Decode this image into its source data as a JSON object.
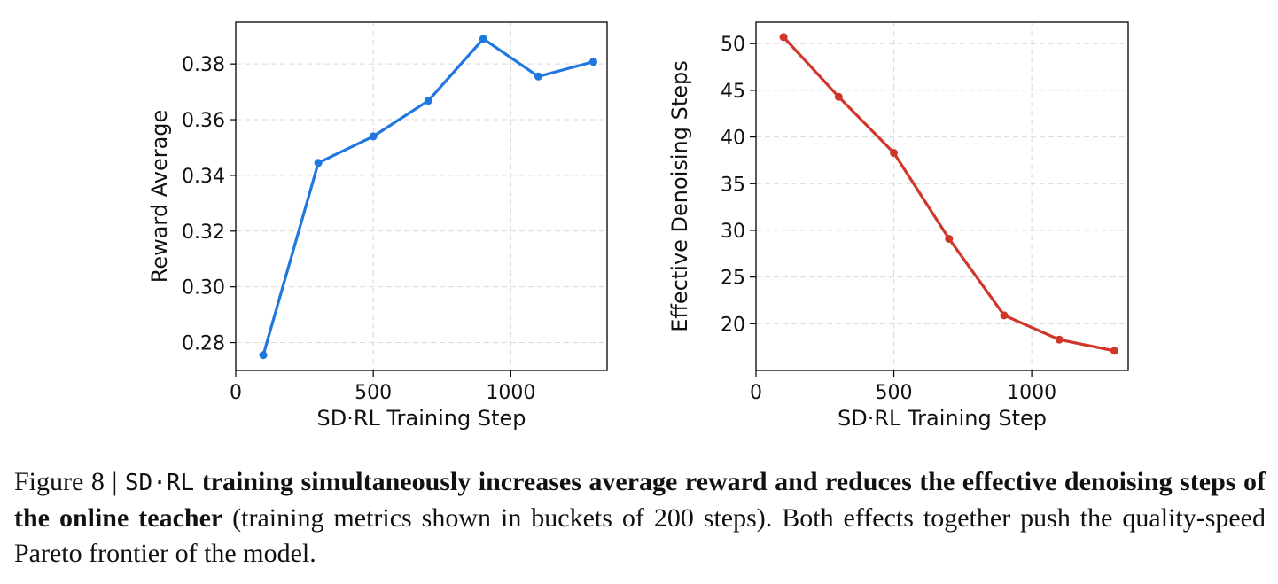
{
  "chart_data": [
    {
      "type": "line",
      "xlabel": "SD·RL Training Step",
      "ylabel": "Reward Average",
      "color": "#1f77e0",
      "xlim": [
        0,
        1350
      ],
      "ylim": [
        0.27,
        0.395
      ],
      "xticks": [
        0,
        500,
        1000
      ],
      "xtick_labels": [
        "0",
        "500",
        "1000"
      ],
      "yticks": [
        0.28,
        0.3,
        0.32,
        0.34,
        0.36,
        0.38
      ],
      "ytick_labels": [
        "0.28",
        "0.30",
        "0.32",
        "0.34",
        "0.36",
        "0.38"
      ],
      "grid": true,
      "x": [
        100,
        300,
        500,
        700,
        900,
        1100,
        1300
      ],
      "y": [
        0.2755,
        0.3445,
        0.354,
        0.3668,
        0.389,
        0.3755,
        0.3808
      ]
    },
    {
      "type": "line",
      "xlabel": "SD·RL Training Step",
      "ylabel": "Effective Denoising Steps",
      "color": "#d1362a",
      "xlim": [
        0,
        1350
      ],
      "ylim": [
        15,
        52.3
      ],
      "xticks": [
        0,
        500,
        1000
      ],
      "xtick_labels": [
        "0",
        "500",
        "1000"
      ],
      "yticks": [
        20,
        25,
        30,
        35,
        40,
        45,
        50
      ],
      "ytick_labels": [
        "20",
        "25",
        "30",
        "35",
        "40",
        "45",
        "50"
      ],
      "grid": true,
      "x": [
        100,
        300,
        500,
        700,
        900,
        1100,
        1300
      ],
      "y": [
        50.7,
        44.3,
        38.3,
        29.1,
        20.9,
        18.3,
        17.1
      ]
    }
  ],
  "caption": {
    "prefix": "Figure 8 | ",
    "method": "SD·RL",
    "bold": " training simultaneously increases average reward and reduces the effective denoising steps of the online teacher",
    "rest": " (training metrics shown in buckets of 200 steps). Both effects together push the quality-speed Pareto frontier of the model."
  }
}
